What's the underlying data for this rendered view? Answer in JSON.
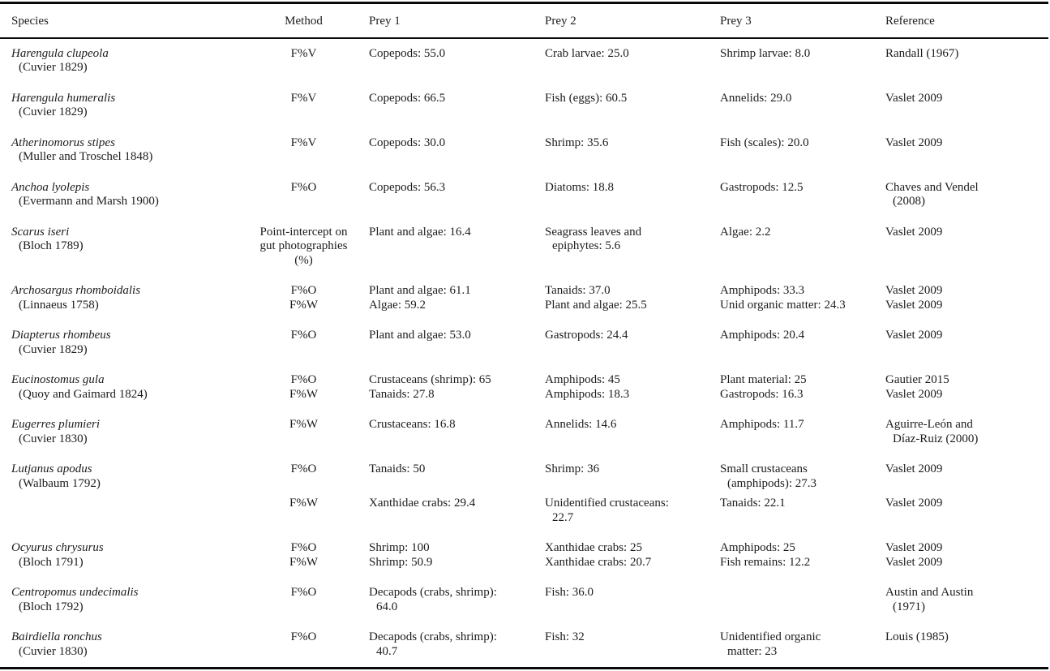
{
  "page": {
    "background_color": "#ffffff",
    "text_color": "#1c1c1c",
    "rule_color": "#0a0a0a"
  },
  "table": {
    "columns": [
      "Species",
      "Method",
      "Prey 1",
      "Prey 2",
      "Prey 3",
      "Reference"
    ],
    "rows": [
      {
        "species": [
          {
            "t": "Harengula clupeola",
            "italic": true
          },
          {
            "t": "(Cuvier 1829)",
            "indent": true
          }
        ],
        "method": [
          {
            "t": "F%V"
          }
        ],
        "prey1": [
          {
            "t": "Copepods: 55.0"
          }
        ],
        "prey2": [
          {
            "t": "Crab larvae: 25.0"
          }
        ],
        "prey3": [
          {
            "t": "Shrimp larvae: 8.0"
          }
        ],
        "reference": [
          {
            "t": "Randall (1967)"
          }
        ]
      },
      {
        "species": [
          {
            "t": "Harengula humeralis",
            "italic": true
          },
          {
            "t": "(Cuvier 1829)",
            "indent": true
          }
        ],
        "method": [
          {
            "t": "F%V"
          }
        ],
        "prey1": [
          {
            "t": "Copepods: 66.5"
          }
        ],
        "prey2": [
          {
            "t": "Fish (eggs): 60.5"
          }
        ],
        "prey3": [
          {
            "t": "Annelids: 29.0"
          }
        ],
        "reference": [
          {
            "t": "Vaslet 2009"
          }
        ]
      },
      {
        "species": [
          {
            "t": "Atherinomorus stipes",
            "italic": true
          },
          {
            "t": "(Muller and Troschel 1848)",
            "indent": true
          }
        ],
        "method": [
          {
            "t": "F%V"
          }
        ],
        "prey1": [
          {
            "t": "Copepods: 30.0"
          }
        ],
        "prey2": [
          {
            "t": "Shrimp: 35.6"
          }
        ],
        "prey3": [
          {
            "t": "Fish (scales): 20.0"
          }
        ],
        "reference": [
          {
            "t": "Vaslet 2009"
          }
        ]
      },
      {
        "species": [
          {
            "t": "Anchoa lyolepis",
            "italic": true
          },
          {
            "t": "(Evermann and Marsh 1900)",
            "indent": true
          }
        ],
        "method": [
          {
            "t": "F%O"
          }
        ],
        "prey1": [
          {
            "t": "Copepods: 56.3"
          }
        ],
        "prey2": [
          {
            "t": "Diatoms: 18.8"
          }
        ],
        "prey3": [
          {
            "t": "Gastropods: 12.5"
          }
        ],
        "reference": [
          {
            "t": "Chaves and Vendel"
          },
          {
            "t": "(2008)",
            "indent": true
          }
        ]
      },
      {
        "species": [
          {
            "t": "Scarus iseri",
            "italic": true
          },
          {
            "t": "(Bloch 1789)",
            "indent": true
          }
        ],
        "method": [
          {
            "t": "Point-intercept on"
          },
          {
            "t": "gut photographies"
          },
          {
            "t": "(%)"
          }
        ],
        "prey1": [
          {
            "t": "Plant and algae: 16.4"
          }
        ],
        "prey2": [
          {
            "t": "Seagrass leaves and"
          },
          {
            "t": "epiphytes: 5.6",
            "indent": true
          }
        ],
        "prey3": [
          {
            "t": "Algae: 2.2"
          }
        ],
        "reference": [
          {
            "t": "Vaslet 2009"
          }
        ]
      },
      {
        "species": [
          {
            "t": "Archosargus rhomboidalis",
            "italic": true
          },
          {
            "t": "(Linnaeus 1758)",
            "indent": true
          }
        ],
        "method": [
          {
            "t": "F%O"
          },
          {
            "t": "F%W"
          }
        ],
        "prey1": [
          {
            "t": "Plant and algae: 61.1"
          },
          {
            "t": "Algae: 59.2"
          }
        ],
        "prey2": [
          {
            "t": "Tanaids: 37.0"
          },
          {
            "t": "Plant and algae: 25.5"
          }
        ],
        "prey3": [
          {
            "t": "Amphipods: 33.3"
          },
          {
            "t": "Unid organic matter: 24.3"
          }
        ],
        "reference": [
          {
            "t": "Vaslet 2009"
          },
          {
            "t": "Vaslet 2009"
          }
        ]
      },
      {
        "species": [
          {
            "t": "Diapterus rhombeus",
            "italic": true
          },
          {
            "t": "(Cuvier 1829)",
            "indent": true
          }
        ],
        "method": [
          {
            "t": "F%O"
          }
        ],
        "prey1": [
          {
            "t": "Plant and algae: 53.0"
          }
        ],
        "prey2": [
          {
            "t": "Gastropods: 24.4"
          }
        ],
        "prey3": [
          {
            "t": "Amphipods: 20.4"
          }
        ],
        "reference": [
          {
            "t": "Vaslet 2009"
          }
        ]
      },
      {
        "species": [
          {
            "t": "Eucinostomus gula",
            "italic": true
          },
          {
            "t": "(Quoy and Gaimard 1824)",
            "indent": true
          }
        ],
        "method": [
          {
            "t": "F%O"
          },
          {
            "t": "F%W"
          }
        ],
        "prey1": [
          {
            "t": "Crustaceans (shrimp): 65"
          },
          {
            "t": "Tanaids: 27.8"
          }
        ],
        "prey2": [
          {
            "t": "Amphipods: 45"
          },
          {
            "t": "Amphipods: 18.3"
          }
        ],
        "prey3": [
          {
            "t": "Plant material: 25"
          },
          {
            "t": "Gastropods: 16.3"
          }
        ],
        "reference": [
          {
            "t": "Gautier 2015"
          },
          {
            "t": "Vaslet 2009"
          }
        ]
      },
      {
        "species": [
          {
            "t": "Eugerres plumieri",
            "italic": true
          },
          {
            "t": "(Cuvier 1830)",
            "indent": true
          }
        ],
        "method": [
          {
            "t": "F%W"
          }
        ],
        "prey1": [
          {
            "t": "Crustaceans: 16.8"
          }
        ],
        "prey2": [
          {
            "t": "Annelids: 14.6"
          }
        ],
        "prey3": [
          {
            "t": "Amphipods: 11.7"
          }
        ],
        "reference": [
          {
            "t": "Aguirre-León and"
          },
          {
            "t": "Díaz-Ruiz (2000)",
            "indent": true
          }
        ]
      },
      {
        "tight_bottom": true,
        "species": [
          {
            "t": "Lutjanus apodus",
            "italic": true
          },
          {
            "t": "(Walbaum 1792)",
            "indent": true
          }
        ],
        "method": [
          {
            "t": "F%O"
          }
        ],
        "prey1": [
          {
            "t": "Tanaids: 50"
          }
        ],
        "prey2": [
          {
            "t": "Shrimp: 36"
          }
        ],
        "prey3": [
          {
            "t": "Small crustaceans"
          },
          {
            "t": "(amphipods): 27.3",
            "indent": true
          }
        ],
        "reference": [
          {
            "t": "Vaslet 2009"
          }
        ]
      },
      {
        "tight_top": true,
        "species": [],
        "method": [
          {
            "t": "F%W"
          }
        ],
        "prey1": [
          {
            "t": "Xanthidae crabs: 29.4"
          }
        ],
        "prey2": [
          {
            "t": "Unidentified crustaceans:"
          },
          {
            "t": "22.7",
            "indent": true
          }
        ],
        "prey3": [
          {
            "t": "Tanaids: 22.1"
          }
        ],
        "reference": [
          {
            "t": "Vaslet 2009"
          }
        ]
      },
      {
        "species": [
          {
            "t": "Ocyurus chrysurus",
            "italic": true
          },
          {
            "t": "(Bloch 1791)",
            "indent": true
          }
        ],
        "method": [
          {
            "t": "F%O"
          },
          {
            "t": "F%W"
          }
        ],
        "prey1": [
          {
            "t": "Shrimp: 100"
          },
          {
            "t": "Shrimp: 50.9"
          }
        ],
        "prey2": [
          {
            "t": "Xanthidae crabs: 25"
          },
          {
            "t": "Xanthidae crabs: 20.7"
          }
        ],
        "prey3": [
          {
            "t": "Amphipods: 25"
          },
          {
            "t": "Fish remains: 12.2"
          }
        ],
        "reference": [
          {
            "t": "Vaslet 2009"
          },
          {
            "t": "Vaslet 2009"
          }
        ]
      },
      {
        "species": [
          {
            "t": "Centropomus undecimalis",
            "italic": true
          },
          {
            "t": "(Bloch 1792)",
            "indent": true
          }
        ],
        "method": [
          {
            "t": "F%O"
          }
        ],
        "prey1": [
          {
            "t": "Decapods (crabs, shrimp):"
          },
          {
            "t": "64.0",
            "indent": true
          }
        ],
        "prey2": [
          {
            "t": "Fish: 36.0"
          }
        ],
        "prey3": [],
        "reference": [
          {
            "t": "Austin and Austin"
          },
          {
            "t": "(1971)",
            "indent": true
          }
        ]
      },
      {
        "species": [
          {
            "t": "Bairdiella ronchus",
            "italic": true
          },
          {
            "t": "(Cuvier 1830)",
            "indent": true
          }
        ],
        "method": [
          {
            "t": "F%O"
          }
        ],
        "prey1": [
          {
            "t": "Decapods (crabs, shrimp):"
          },
          {
            "t": "40.7",
            "indent": true
          }
        ],
        "prey2": [
          {
            "t": "Fish: 32"
          }
        ],
        "prey3": [
          {
            "t": "Unidentified organic"
          },
          {
            "t": "matter: 23",
            "indent": true
          }
        ],
        "reference": [
          {
            "t": "Louis (1985)"
          }
        ]
      }
    ]
  }
}
